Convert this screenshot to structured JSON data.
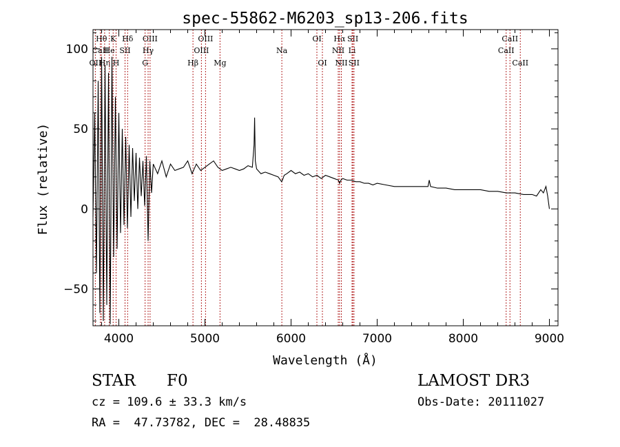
{
  "chart_data": {
    "type": "line",
    "title": "spec-55862-M6203_sp13-206.fits",
    "xlabel": "Wavelength (Å)",
    "ylabel": "Flux (relative)",
    "xlim": [
      3700,
      9100
    ],
    "ylim": [
      -73,
      112
    ],
    "x_ticks": [
      4000,
      5000,
      6000,
      7000,
      8000,
      9000
    ],
    "y_ticks": [
      -50,
      0,
      50,
      100
    ],
    "x_tick_labels": [
      "4000",
      "5000",
      "6000",
      "7000",
      "8000",
      "9000"
    ],
    "y_tick_labels": [
      "−50",
      "0",
      "50",
      "100"
    ],
    "line_color": "#000000",
    "marker_color": "#b22222",
    "series": [
      {
        "name": "flux",
        "x": [
          3700,
          3720,
          3740,
          3760,
          3780,
          3800,
          3820,
          3840,
          3860,
          3880,
          3900,
          3920,
          3940,
          3960,
          3980,
          4000,
          4020,
          4040,
          4060,
          4080,
          4100,
          4120,
          4140,
          4160,
          4180,
          4200,
          4220,
          4240,
          4260,
          4280,
          4300,
          4320,
          4340,
          4360,
          4380,
          4400,
          4450,
          4500,
          4550,
          4600,
          4650,
          4700,
          4750,
          4800,
          4850,
          4900,
          4950,
          5000,
          5050,
          5100,
          5150,
          5200,
          5250,
          5300,
          5350,
          5400,
          5450,
          5500,
          5550,
          5570,
          5577,
          5585,
          5600,
          5650,
          5700,
          5750,
          5800,
          5850,
          5890,
          5900,
          5920,
          5950,
          6000,
          6050,
          6100,
          6150,
          6200,
          6250,
          6300,
          6350,
          6400,
          6450,
          6500,
          6550,
          6563,
          6580,
          6600,
          6650,
          6700,
          6750,
          6800,
          6850,
          6900,
          6950,
          7000,
          7100,
          7200,
          7300,
          7400,
          7500,
          7590,
          7605,
          7620,
          7700,
          7800,
          7900,
          8000,
          8100,
          8200,
          8300,
          8400,
          8500,
          8600,
          8700,
          8800,
          8850,
          8900,
          8930,
          8960,
          8980,
          9000
        ],
        "y": [
          -5,
          60,
          -40,
          80,
          -65,
          95,
          -70,
          90,
          -60,
          85,
          -72,
          95,
          -30,
          70,
          -25,
          60,
          -15,
          50,
          -10,
          45,
          -12,
          40,
          -5,
          38,
          5,
          35,
          0,
          32,
          8,
          30,
          2,
          33,
          -20,
          30,
          10,
          28,
          22,
          30,
          20,
          28,
          24,
          25,
          26,
          30,
          22,
          28,
          24,
          26,
          28,
          30,
          26,
          24,
          25,
          26,
          25,
          24,
          25,
          27,
          26,
          40,
          57,
          30,
          25,
          22,
          23,
          22,
          21,
          20,
          17,
          18,
          21,
          22,
          24,
          22,
          23,
          21,
          22,
          20,
          21,
          19,
          21,
          20,
          19,
          18,
          16,
          18,
          19,
          18,
          18,
          17,
          17,
          16,
          16,
          15,
          16,
          15,
          14,
          14,
          14,
          14,
          14,
          18,
          14,
          13,
          13,
          12,
          12,
          12,
          12,
          11,
          11,
          10,
          10,
          9,
          9,
          8,
          12,
          10,
          14,
          8,
          0
        ]
      }
    ],
    "line_markers": [
      {
        "label": "Hθ",
        "wl": 3798,
        "row": 0
      },
      {
        "label": "OII",
        "wl": 3727,
        "row": 2
      },
      {
        "label": "CaII",
        "wl": 3785,
        "row": 1
      },
      {
        "label": "Hη",
        "wl": 3835,
        "row": 2
      },
      {
        "label": "K",
        "wl": 3934,
        "row": 0
      },
      {
        "label": "He",
        "wl": 3889,
        "row": 1
      },
      {
        "label": "H",
        "wl": 3968,
        "row": 2
      },
      {
        "label": "SII",
        "wl": 4072,
        "row": 1
      },
      {
        "label": "Hδ",
        "wl": 4102,
        "row": 0
      },
      {
        "label": "OIII",
        "wl": 4363,
        "row": 0
      },
      {
        "label": "Hγ",
        "wl": 4340,
        "row": 1
      },
      {
        "label": "G",
        "wl": 4305,
        "row": 2
      },
      {
        "label": "Hβ",
        "wl": 4861,
        "row": 2
      },
      {
        "label": "OIII",
        "wl": 5007,
        "row": 0
      },
      {
        "label": "OIII",
        "wl": 4959,
        "row": 1
      },
      {
        "label": "Mg",
        "wl": 5175,
        "row": 2
      },
      {
        "label": "Na",
        "wl": 5893,
        "row": 1
      },
      {
        "label": "OI",
        "wl": 6300,
        "row": 0
      },
      {
        "label": "OI",
        "wl": 6364,
        "row": 2
      },
      {
        "label": "Hα",
        "wl": 6563,
        "row": 0
      },
      {
        "label": "NII",
        "wl": 6548,
        "row": 1
      },
      {
        "label": "NII",
        "wl": 6584,
        "row": 2
      },
      {
        "label": "SII",
        "wl": 6717,
        "row": 0
      },
      {
        "label": "Li",
        "wl": 6708,
        "row": 1
      },
      {
        "label": "SII",
        "wl": 6731,
        "row": 2
      },
      {
        "label": "CaII",
        "wl": 8542,
        "row": 0
      },
      {
        "label": "CaII",
        "wl": 8498,
        "row": 1
      },
      {
        "label": "CaII",
        "wl": 8662,
        "row": 2
      }
    ]
  },
  "info": {
    "object_class": "STAR",
    "subclass": "F0",
    "survey": "LAMOST DR3",
    "redshift_line": "cz = 109.6 ± 33.3 km/s",
    "obs_date_line": "Obs-Date: 20111027",
    "coords_line": "RA =  47.73782, DEC =  28.48835"
  }
}
